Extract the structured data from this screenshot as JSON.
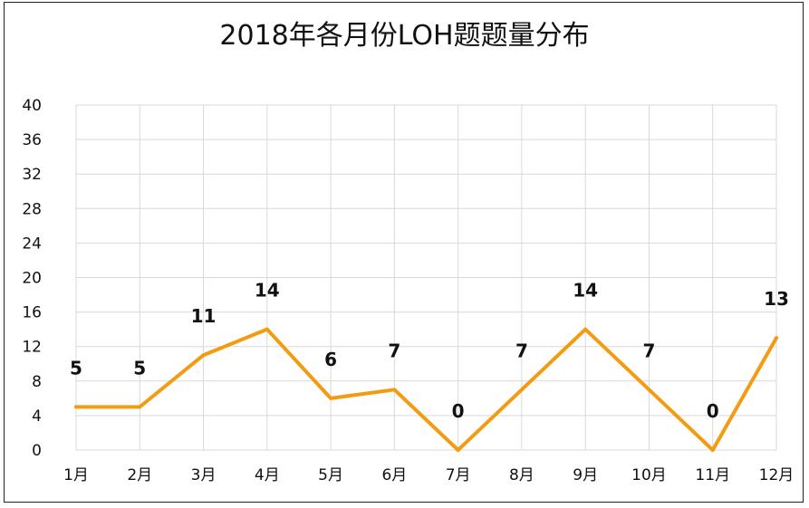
{
  "chart_data": {
    "type": "line",
    "title": "2018年各月份LOH题题量分布",
    "categories": [
      "1月",
      "2月",
      "3月",
      "4月",
      "5月",
      "6月",
      "7月",
      "8月",
      "9月",
      "10月",
      "11月",
      "12月"
    ],
    "series": [
      {
        "values": [
          5,
          5,
          11,
          14,
          6,
          7,
          0,
          7,
          14,
          7,
          0,
          13
        ]
      }
    ],
    "ylim": [
      0,
      40
    ],
    "yticks": [
      0,
      4,
      8,
      12,
      16,
      20,
      24,
      28,
      32,
      36,
      40
    ],
    "grid": true,
    "line_color": "#F39C12",
    "data_labels": true
  }
}
